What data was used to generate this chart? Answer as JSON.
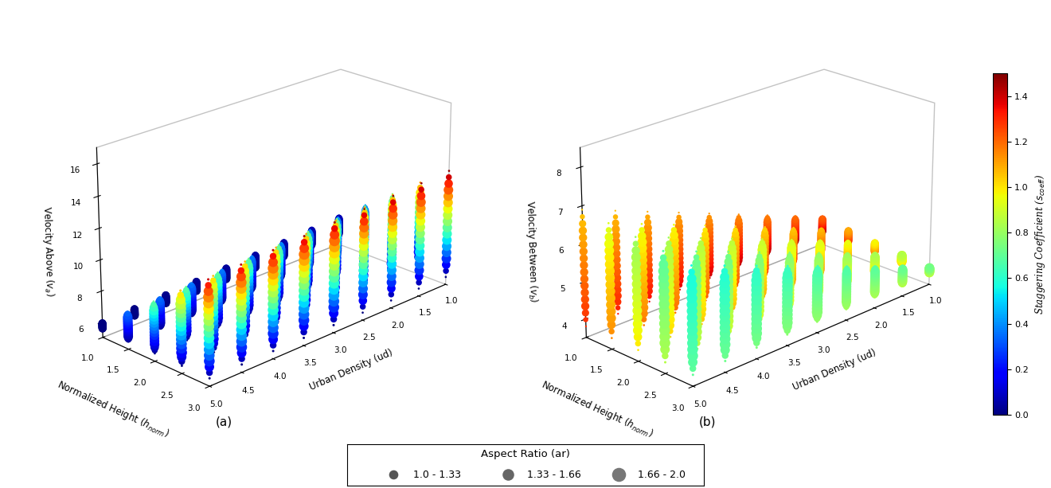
{
  "title_a": "(a)",
  "title_b": "(b)",
  "xlabel": "Urban Density (ud)",
  "ylabel_norm": "Normalized Height ($h_{norm}$)",
  "zlabel_a": "Velocity Above ($v_a$)",
  "zlabel_b": "Velocity Between ($v_b$)",
  "colorbar_label": "Staggering Coefficient ($s_{coeff}$)",
  "ud_values": [
    1.0,
    1.5,
    2.0,
    2.5,
    3.0
  ],
  "hnorm_values": [
    1.0,
    1.5,
    2.0,
    2.5,
    3.0,
    3.5,
    4.0,
    4.5,
    5.0
  ],
  "colormap": "jet",
  "colorbar_range": [
    0.0,
    1.5
  ],
  "zlim_a": [
    5,
    17
  ],
  "zlim_b": [
    3.5,
    8.5
  ],
  "zticks_a": [
    6,
    8,
    10,
    12,
    14,
    16
  ],
  "zticks_b": [
    4,
    5,
    6,
    7,
    8
  ],
  "legend_title": "Aspect Ratio (ar)",
  "legend_entries": [
    "1.0 - 1.33",
    "1.33 - 1.66",
    "1.66 - 2.0"
  ],
  "background_color": "#ffffff"
}
